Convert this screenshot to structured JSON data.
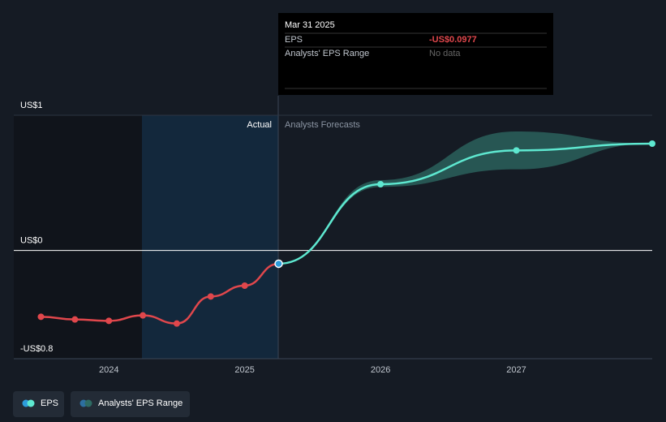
{
  "chart_data": {
    "type": "line",
    "tooltip": {
      "date": "Mar 31 2025",
      "eps_label": "EPS",
      "eps_value_label": "-US$0.0977",
      "range_label": "Analysts' EPS Range",
      "range_value": "No data"
    },
    "region_labels": {
      "actual": "Actual",
      "forecast": "Analysts Forecasts"
    },
    "xlim": [
      2023.3,
      2028
    ],
    "xticks": [
      2024,
      2025,
      2026,
      2027
    ],
    "ylim": [
      -0.8,
      1
    ],
    "yticks": [
      {
        "value": 1,
        "label": "US$1"
      },
      {
        "value": 0,
        "label": "US$0"
      },
      {
        "value": -0.8,
        "label": "-US$0.8"
      }
    ],
    "series": [
      {
        "name": "EPS",
        "color": "#e0474c",
        "x": [
          2023.5,
          2023.75,
          2024.0,
          2024.25,
          2024.5,
          2024.75,
          2025.0,
          2025.25
        ],
        "values": [
          -0.49,
          -0.51,
          -0.52,
          -0.48,
          -0.54,
          -0.34,
          -0.26,
          -0.0977
        ]
      }
    ],
    "forecast": {
      "color": "#5ee8d0",
      "x": [
        2025.25,
        2026.0,
        2027.0,
        2028.0
      ],
      "values": [
        -0.0977,
        0.49,
        0.74,
        0.79
      ]
    },
    "range": {
      "name": "Analysts' EPS Range",
      "color": "#2e6b63",
      "x": [
        2025.25,
        2026.0,
        2027.0,
        2028.0
      ],
      "low": [
        -0.0977,
        0.47,
        0.6,
        0.79
      ],
      "high": [
        -0.0977,
        0.52,
        0.88,
        0.79
      ]
    }
  }
}
